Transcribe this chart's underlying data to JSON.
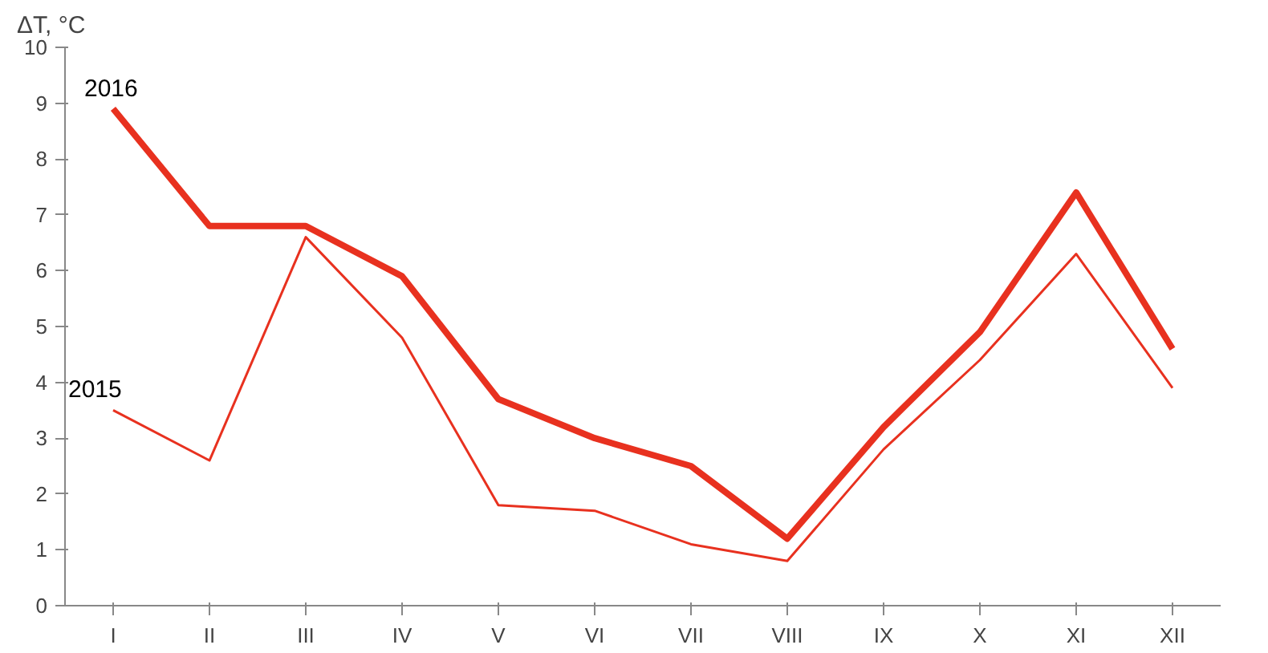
{
  "chart_data": {
    "type": "line",
    "ylabel": "ΔT, °C",
    "categories": [
      "I",
      "II",
      "III",
      "IV",
      "V",
      "VI",
      "VII",
      "VIII",
      "IX",
      "X",
      "XI",
      "XII"
    ],
    "ylim": [
      0,
      10
    ],
    "yticks": [
      0,
      1,
      2,
      3,
      4,
      5,
      6,
      7,
      8,
      9,
      10
    ],
    "grid": false,
    "marker": "none",
    "series": [
      {
        "name": "2016",
        "color": "#e8311f",
        "values": [
          8.9,
          6.8,
          6.8,
          5.9,
          3.7,
          3.0,
          2.5,
          1.2,
          3.2,
          4.9,
          7.4,
          4.6
        ]
      },
      {
        "name": "2015",
        "color": "#e8311f",
        "values": [
          3.5,
          2.6,
          6.6,
          4.8,
          1.8,
          1.7,
          1.1,
          0.8,
          2.8,
          4.4,
          6.3,
          3.9
        ]
      }
    ]
  }
}
